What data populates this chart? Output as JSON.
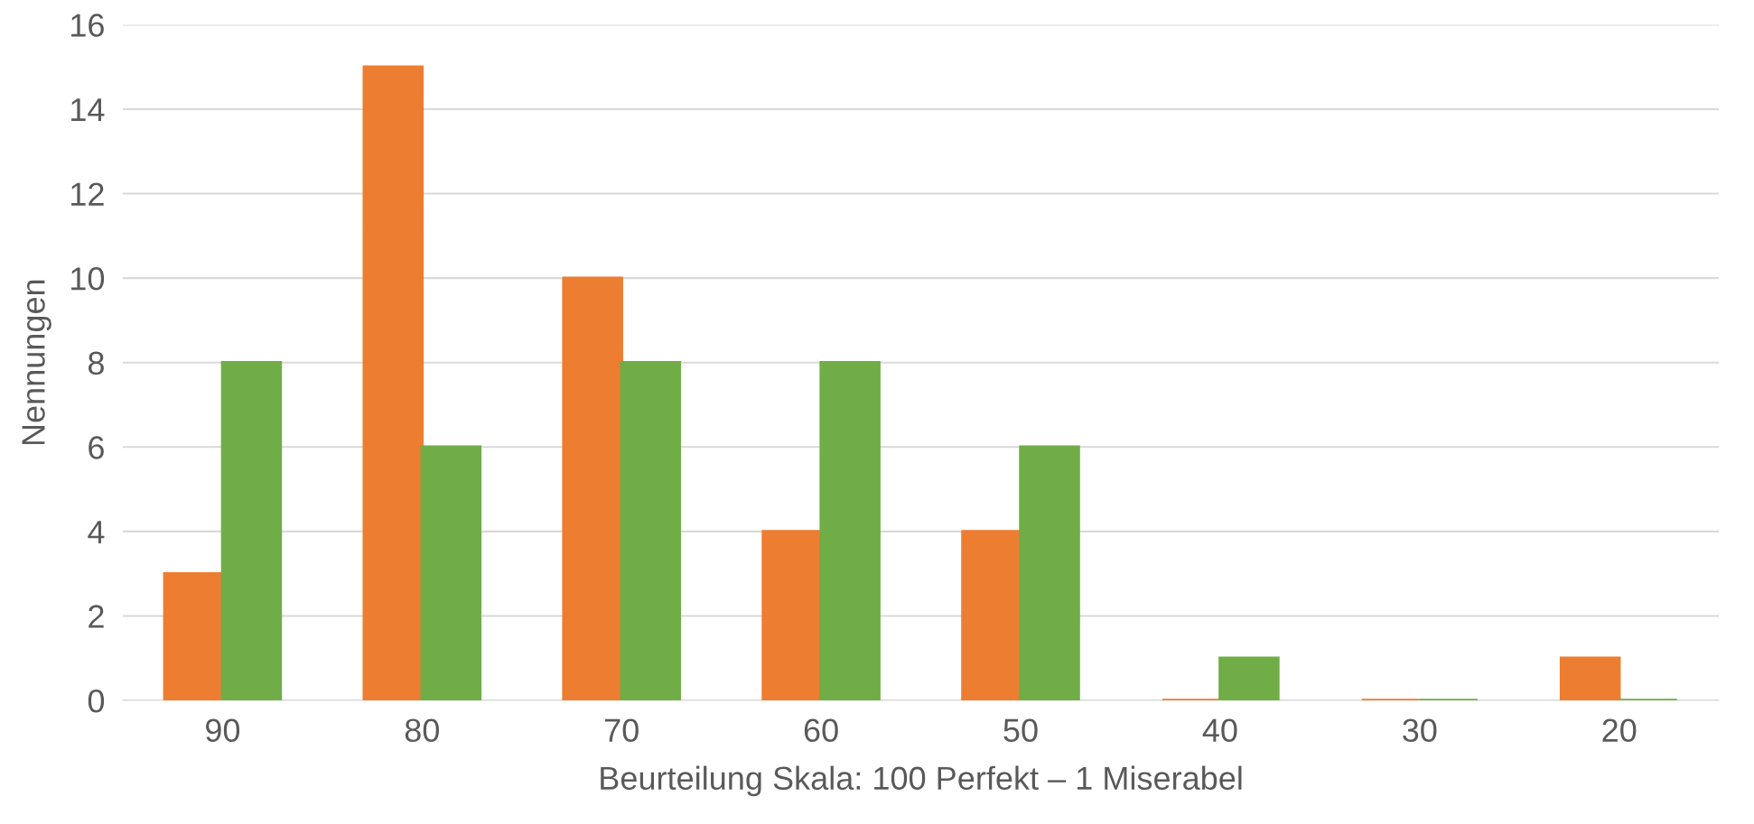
{
  "chart_data": {
    "type": "bar",
    "xlabel": "Beurteilung Skala: 100 Perfekt – 1 Miserabel",
    "ylabel": "Nennungen",
    "categories": [
      "90",
      "80",
      "70",
      "60",
      "50",
      "40",
      "30",
      "20"
    ],
    "series": [
      {
        "color": "#ed7d31",
        "values": [
          3,
          15,
          10,
          4,
          4,
          0,
          0,
          1
        ]
      },
      {
        "color": "#70ad47",
        "values": [
          8,
          6,
          8,
          8,
          6,
          1,
          0,
          0
        ]
      }
    ],
    "ylim": [
      0,
      16
    ],
    "yticks": [
      0,
      2,
      4,
      6,
      8,
      10,
      12,
      14,
      16
    ],
    "grid": "y"
  }
}
